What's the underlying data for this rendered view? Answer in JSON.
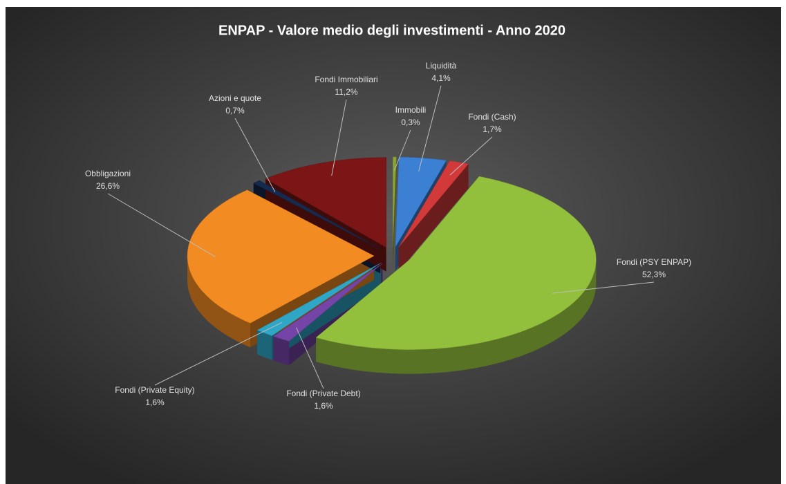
{
  "chart_data": {
    "type": "pie",
    "title": "ENPAP - Valore medio degli investimenti - Anno 2020",
    "categories": [
      "Immobili",
      "Liquidità",
      "Fondi (Cash)",
      "Fondi (PSY ENPAP)",
      "Fondi (Private Debt)",
      "Fondi (Private Equity)",
      "Obbligazioni",
      "Azioni e quote",
      "Fondi Immobiliari"
    ],
    "values": [
      0.3,
      4.1,
      1.7,
      52.3,
      1.6,
      1.6,
      26.6,
      0.7,
      11.2
    ],
    "value_labels": [
      "0,3%",
      "4,1%",
      "1,7%",
      "52,3%",
      "1,6%",
      "1,6%",
      "26,6%",
      "0,7%",
      "11,2%"
    ],
    "colors": [
      "#8aa43a",
      "#3b80d2",
      "#d23a3a",
      "#93c03c",
      "#7444a6",
      "#2fa6c6",
      "#f28c22",
      "#152a4e",
      "#7c1616"
    ]
  }
}
